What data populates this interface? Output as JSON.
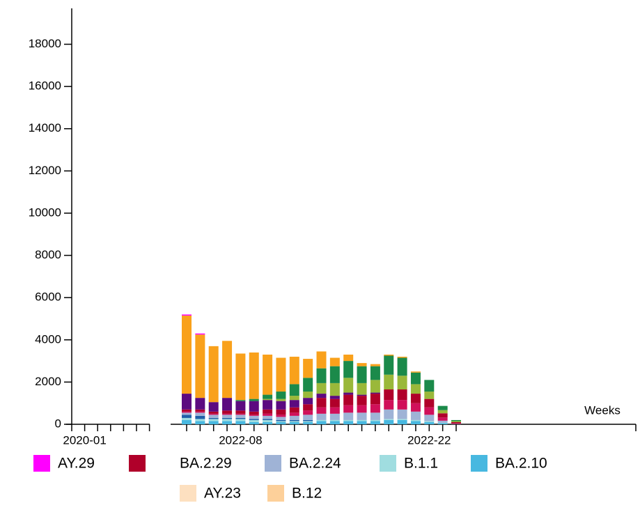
{
  "chart_data": {
    "type": "stacked-bar",
    "x_label": "Weeks",
    "left_categories": [
      null,
      "2020-01",
      null,
      null,
      null,
      null,
      null
    ],
    "categories": [
      null,
      null,
      null,
      null,
      "2022-08",
      null,
      null,
      null,
      null,
      null,
      null,
      null,
      null,
      null,
      null,
      null,
      null,
      null,
      "2022-22",
      null,
      null
    ],
    "ylim": [
      0,
      19700
    ],
    "yticks": [
      0,
      2000,
      4000,
      6000,
      8000,
      10000,
      12000,
      14000,
      16000,
      18000
    ],
    "series": [
      {
        "color": "#48b8e0",
        "name": "BA.2.10",
        "values": [
          200,
          150,
          150,
          150,
          150,
          100,
          100,
          100,
          100,
          100,
          150,
          150,
          150,
          150,
          150,
          200,
          200,
          150,
          100,
          50,
          5
        ]
      },
      {
        "color": "#a0dde0",
        "name": "B.1.1",
        "values": [
          100,
          100,
          100,
          100,
          100,
          100,
          100,
          50,
          50,
          50,
          50,
          50,
          50,
          50,
          50,
          50,
          50,
          50,
          50,
          20,
          5
        ]
      },
      {
        "color": "#2060a8",
        "values": [
          150,
          150,
          50,
          50,
          50,
          50,
          50,
          50,
          50,
          50,
          0,
          0,
          0,
          0,
          0,
          0,
          0,
          0,
          0,
          0,
          0
        ]
      },
      {
        "color": "#9fb3d6",
        "name": "BA.2.24",
        "values": [
          100,
          150,
          150,
          150,
          150,
          150,
          150,
          150,
          200,
          250,
          300,
          300,
          350,
          350,
          350,
          450,
          450,
          400,
          300,
          100,
          10
        ]
      },
      {
        "name": "BA.2.29",
        "values": [
          0,
          0,
          0,
          0,
          0,
          0,
          0,
          0,
          0,
          0,
          0,
          0,
          0,
          0,
          0,
          0,
          0,
          0,
          0,
          0,
          0
        ]
      },
      {
        "color": "#d0105a",
        "values": [
          50,
          50,
          50,
          50,
          50,
          50,
          100,
          100,
          150,
          200,
          300,
          300,
          350,
          350,
          400,
          450,
          450,
          400,
          350,
          150,
          30
        ]
      },
      {
        "color": "#b0002a",
        "values": [
          100,
          100,
          100,
          150,
          150,
          150,
          200,
          250,
          250,
          300,
          450,
          400,
          500,
          450,
          500,
          500,
          500,
          450,
          400,
          200,
          50
        ]
      },
      {
        "color": "#5c0a80",
        "values": [
          750,
          550,
          450,
          600,
          450,
          500,
          450,
          400,
          350,
          300,
          200,
          150,
          100,
          50,
          50,
          0,
          0,
          0,
          0,
          0,
          0
        ]
      },
      {
        "color": "#9ab83a",
        "values": [
          0,
          0,
          0,
          0,
          0,
          0,
          50,
          100,
          200,
          300,
          500,
          600,
          700,
          550,
          600,
          700,
          650,
          450,
          350,
          150,
          50
        ]
      },
      {
        "color": "#1b8a4a",
        "values": [
          0,
          0,
          0,
          0,
          50,
          100,
          200,
          350,
          550,
          650,
          700,
          800,
          800,
          800,
          650,
          900,
          850,
          550,
          550,
          200,
          50
        ]
      },
      {
        "color": "#f9a11b",
        "values": [
          3700,
          3000,
          2650,
          2700,
          2200,
          2200,
          1900,
          1600,
          1300,
          900,
          800,
          400,
          300,
          150,
          100,
          50,
          50,
          50,
          0,
          0,
          0
        ]
      },
      {
        "color": "#fde0c0",
        "name": "AY.23",
        "values": [
          0,
          0,
          0,
          0,
          0,
          0,
          0,
          0,
          0,
          0,
          0,
          0,
          0,
          0,
          0,
          0,
          0,
          0,
          0,
          0,
          0
        ]
      },
      {
        "color": "#fdd09a",
        "name": "B.12",
        "values": [
          0,
          0,
          0,
          0,
          0,
          0,
          0,
          0,
          0,
          0,
          0,
          0,
          0,
          0,
          0,
          0,
          0,
          0,
          0,
          0,
          0
        ]
      },
      {
        "color": "#ff00ff",
        "name": "AY.29",
        "values": [
          50,
          50,
          0,
          0,
          0,
          0,
          0,
          0,
          0,
          0,
          0,
          0,
          0,
          0,
          0,
          0,
          0,
          0,
          0,
          0,
          0
        ]
      }
    ]
  }
}
